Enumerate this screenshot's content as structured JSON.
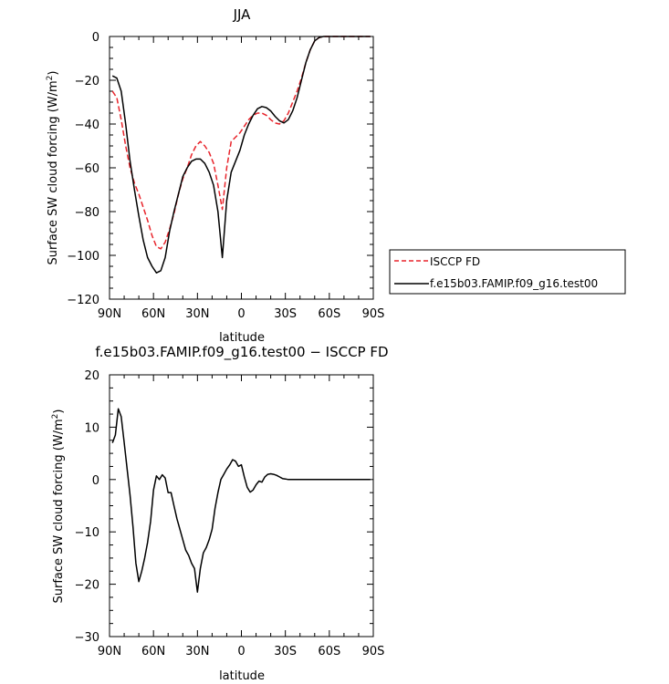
{
  "chart_data": [
    {
      "type": "line",
      "title": "JJA",
      "xlabel": "latitude",
      "ylabel": "Surface SW cloud forcing (W/m²)",
      "ylabel_main": "Surface SW cloud forcing (W/m",
      "ylabel_sup": "2",
      "ylabel_end": ")",
      "xlim": [
        90,
        -90
      ],
      "ylim": [
        -120,
        0
      ],
      "x_ticks": [
        90,
        60,
        30,
        0,
        -30,
        -60,
        -90
      ],
      "x_tick_labels": [
        "90N",
        "60N",
        "30N",
        "0",
        "30S",
        "60S",
        "90S"
      ],
      "y_ticks": [
        0,
        -20,
        -40,
        -60,
        -80,
        -100,
        -120
      ],
      "y_tick_labels": [
        "0",
        "−20",
        "−40",
        "−60",
        "−80",
        "−100",
        "−120"
      ],
      "legend": {
        "placement": "right",
        "entries": [
          "ISCCP FD",
          "f.e15b03.FAMIP.f09_g16.test00"
        ]
      },
      "series": [
        {
          "name": "ISCCP FD",
          "color": "#e8242b",
          "dash": true,
          "x": [
            88,
            85,
            82,
            79,
            76,
            73,
            70,
            67,
            64,
            61,
            58,
            55,
            52,
            49,
            46,
            43,
            40,
            37,
            34,
            31,
            28,
            25,
            22,
            19,
            16,
            13,
            10,
            7,
            4,
            1,
            -2,
            -5,
            -8,
            -11,
            -14,
            -17,
            -20,
            -23,
            -26,
            -29,
            -32,
            -35,
            -38,
            -41,
            -44,
            -47,
            -50,
            -53,
            -56,
            -59,
            -62,
            -65,
            -68,
            -71,
            -74,
            -77,
            -80,
            -83,
            -86,
            -88
          ],
          "y": [
            -25,
            -28,
            -38,
            -50,
            -60,
            -67,
            -72,
            -78,
            -84,
            -91,
            -96,
            -97,
            -94,
            -88,
            -81,
            -72,
            -65,
            -60,
            -54,
            -50,
            -48,
            -50,
            -53,
            -58,
            -68,
            -79,
            -60,
            -48,
            -46,
            -44,
            -41,
            -38,
            -36,
            -35,
            -35,
            -36,
            -38,
            -39.5,
            -40,
            -38.5,
            -35,
            -30,
            -25,
            -19,
            -12,
            -6,
            -2,
            -0.5,
            0,
            0,
            0,
            0,
            0,
            0,
            0,
            0,
            0,
            0,
            0,
            0
          ]
        },
        {
          "name": "f.e15b03.FAMIP.f09_g16.test00",
          "color": "#000000",
          "dash": false,
          "x": [
            88,
            85,
            82,
            79,
            76,
            73,
            70,
            67,
            64,
            61,
            58,
            55,
            52,
            49,
            46,
            43,
            40,
            37,
            34,
            31,
            28,
            25,
            22,
            19,
            16,
            13,
            10,
            7,
            4,
            1,
            -2,
            -5,
            -8,
            -11,
            -14,
            -17,
            -20,
            -23,
            -26,
            -29,
            -32,
            -35,
            -38,
            -41,
            -44,
            -47,
            -50,
            -53,
            -56,
            -59,
            -62,
            -65,
            -68,
            -71,
            -74,
            -77,
            -80,
            -83,
            -86,
            -88
          ],
          "y": [
            -18,
            -19,
            -25,
            -40,
            -57,
            -70,
            -82,
            -93,
            -101,
            -105,
            -108,
            -107,
            -101,
            -89,
            -80,
            -72,
            -64,
            -60,
            -57,
            -56,
            -56,
            -58,
            -62,
            -68,
            -80,
            -101,
            -75,
            -62,
            -57,
            -52,
            -45,
            -40,
            -36,
            -33,
            -32,
            -32.5,
            -34,
            -36.5,
            -38.5,
            -39.5,
            -38,
            -34,
            -28,
            -20,
            -12,
            -6,
            -2,
            -0.5,
            0,
            0,
            0,
            0,
            0,
            0,
            0,
            0,
            0,
            0,
            0,
            0
          ]
        }
      ]
    },
    {
      "type": "line",
      "title": "f.e15b03.FAMIP.f09_g16.test00 − ISCCP FD",
      "xlabel": "latitude",
      "ylabel": "Surface SW cloud forcing (W/m²)",
      "ylabel_main": "Surface SW cloud forcing (W/m",
      "ylabel_sup": "2",
      "ylabel_end": ")",
      "xlim": [
        90,
        -90
      ],
      "ylim": [
        -30,
        20
      ],
      "x_ticks": [
        90,
        60,
        30,
        0,
        -30,
        -60,
        -90
      ],
      "x_tick_labels": [
        "90N",
        "60N",
        "30N",
        "0",
        "30S",
        "60S",
        "90S"
      ],
      "y_ticks": [
        20,
        10,
        0,
        -10,
        -20,
        -30
      ],
      "y_tick_labels": [
        "20",
        "10",
        "0",
        "−10",
        "−20",
        "−30"
      ],
      "series": [
        {
          "color": "#000000",
          "dash": false,
          "x": [
            88,
            86,
            84,
            82,
            80,
            78,
            76,
            74,
            72,
            70,
            68,
            66,
            64,
            62,
            60,
            58,
            56,
            54,
            52,
            50,
            48,
            46,
            44,
            42,
            40,
            38,
            36,
            34,
            32,
            30,
            28,
            26,
            24,
            22,
            20,
            18,
            16,
            14,
            12,
            10,
            8,
            6,
            4,
            2,
            0,
            -2,
            -4,
            -6,
            -8,
            -10,
            -12,
            -14,
            -16,
            -18,
            -20,
            -22,
            -24,
            -26,
            -28,
            -30,
            -32,
            -34,
            -36,
            -38,
            -40,
            -42,
            -44,
            -46,
            -48,
            -50,
            -52,
            -54,
            -56,
            -58,
            -60,
            -62,
            -64,
            -66,
            -68,
            -70,
            -72,
            -74,
            -76,
            -78,
            -80,
            -82,
            -84,
            -86,
            -88
          ],
          "y": [
            7,
            8.5,
            13.5,
            12,
            7,
            2,
            -3,
            -9,
            -16,
            -19.5,
            -17.5,
            -15,
            -12,
            -8,
            -2,
            0.7,
            0,
            0.9,
            0.3,
            -2.5,
            -2.5,
            -5,
            -7.5,
            -9.5,
            -11.5,
            -13.5,
            -14.5,
            -16,
            -17,
            -21.5,
            -17,
            -14,
            -13,
            -11.5,
            -9.5,
            -5.5,
            -2.5,
            0,
            1,
            2,
            2.8,
            3.8,
            3.5,
            2.5,
            2.8,
            0.5,
            -1.5,
            -2.4,
            -2,
            -1,
            -0.3,
            -0.5,
            0.5,
            1,
            1.1,
            1,
            0.8,
            0.5,
            0.2,
            0.1,
            0,
            0,
            0,
            0,
            0,
            0,
            0,
            0,
            0,
            0,
            0,
            0,
            0,
            0,
            0,
            0,
            0,
            0,
            0,
            0,
            0,
            0,
            0,
            0,
            0,
            0,
            0,
            0,
            0
          ]
        }
      ]
    }
  ]
}
